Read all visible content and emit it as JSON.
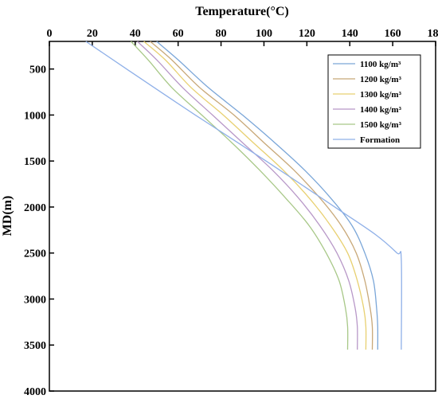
{
  "chart_data": {
    "type": "line",
    "xlabel": "Temperature(°C)",
    "ylabel": "MD(m)",
    "xlim": [
      0,
      180
    ],
    "ylim": [
      4000,
      200
    ],
    "x_ticks": [
      "0",
      "20",
      "40",
      "60",
      "80",
      "100",
      "120",
      "140",
      "160",
      "180"
    ],
    "y_ticks": [
      "500",
      "1000",
      "1500",
      "2000",
      "2500",
      "3000",
      "3500",
      "4000"
    ],
    "x_axis_position": "top",
    "y_axis_inverted": true,
    "grid": false,
    "legend_position": "top-right",
    "series": [
      {
        "name": "1100 kg/m³",
        "color": "#7aa6d8",
        "points": [
          [
            50,
            200
          ],
          [
            60,
            400
          ],
          [
            74,
            700
          ],
          [
            90,
            1000
          ],
          [
            105,
            1300
          ],
          [
            119,
            1600
          ],
          [
            131,
            1900
          ],
          [
            141,
            2200
          ],
          [
            147,
            2500
          ],
          [
            151,
            2800
          ],
          [
            152.5,
            3100
          ],
          [
            153,
            3300
          ],
          [
            153,
            3550
          ]
        ]
      },
      {
        "name": "1200 kg/m³",
        "color": "#c8a878",
        "points": [
          [
            47,
            200
          ],
          [
            57,
            400
          ],
          [
            70,
            700
          ],
          [
            86,
            1000
          ],
          [
            100,
            1300
          ],
          [
            114,
            1600
          ],
          [
            126,
            1900
          ],
          [
            136,
            2200
          ],
          [
            143,
            2500
          ],
          [
            147,
            2800
          ],
          [
            149.5,
            3100
          ],
          [
            150.5,
            3300
          ],
          [
            150.5,
            3550
          ]
        ]
      },
      {
        "name": "1300 kg/m³",
        "color": "#e8d070",
        "points": [
          [
            44,
            200
          ],
          [
            54,
            400
          ],
          [
            66,
            700
          ],
          [
            81,
            1000
          ],
          [
            95,
            1300
          ],
          [
            109,
            1600
          ],
          [
            121,
            1900
          ],
          [
            131,
            2200
          ],
          [
            139,
            2500
          ],
          [
            143.5,
            2800
          ],
          [
            146.5,
            3100
          ],
          [
            147.5,
            3300
          ],
          [
            147.5,
            3550
          ]
        ]
      },
      {
        "name": "1400 kg/m³",
        "color": "#b898c8",
        "points": [
          [
            41,
            200
          ],
          [
            50,
            400
          ],
          [
            62,
            700
          ],
          [
            76,
            1000
          ],
          [
            90,
            1300
          ],
          [
            104,
            1600
          ],
          [
            116,
            1900
          ],
          [
            126,
            2200
          ],
          [
            134,
            2500
          ],
          [
            139.5,
            2800
          ],
          [
            142.5,
            3100
          ],
          [
            143.5,
            3300
          ],
          [
            143.5,
            3550
          ]
        ]
      },
      {
        "name": "1500 kg/m³",
        "color": "#a8c888",
        "points": [
          [
            38,
            200
          ],
          [
            46,
            400
          ],
          [
            57,
            700
          ],
          [
            71,
            1000
          ],
          [
            85,
            1300
          ],
          [
            98,
            1600
          ],
          [
            110,
            1900
          ],
          [
            121,
            2200
          ],
          [
            129,
            2500
          ],
          [
            135,
            2800
          ],
          [
            138,
            3100
          ],
          [
            139,
            3300
          ],
          [
            139,
            3550
          ]
        ]
      },
      {
        "name": "Formation",
        "color": "#8fb0e8",
        "points": [
          [
            17,
            200
          ],
          [
            36,
            500
          ],
          [
            68,
            1000
          ],
          [
            101,
            1500
          ],
          [
            133,
            2000
          ],
          [
            152,
            2300
          ],
          [
            162,
            2500
          ],
          [
            164,
            2570
          ],
          [
            164,
            3550
          ]
        ]
      }
    ]
  }
}
